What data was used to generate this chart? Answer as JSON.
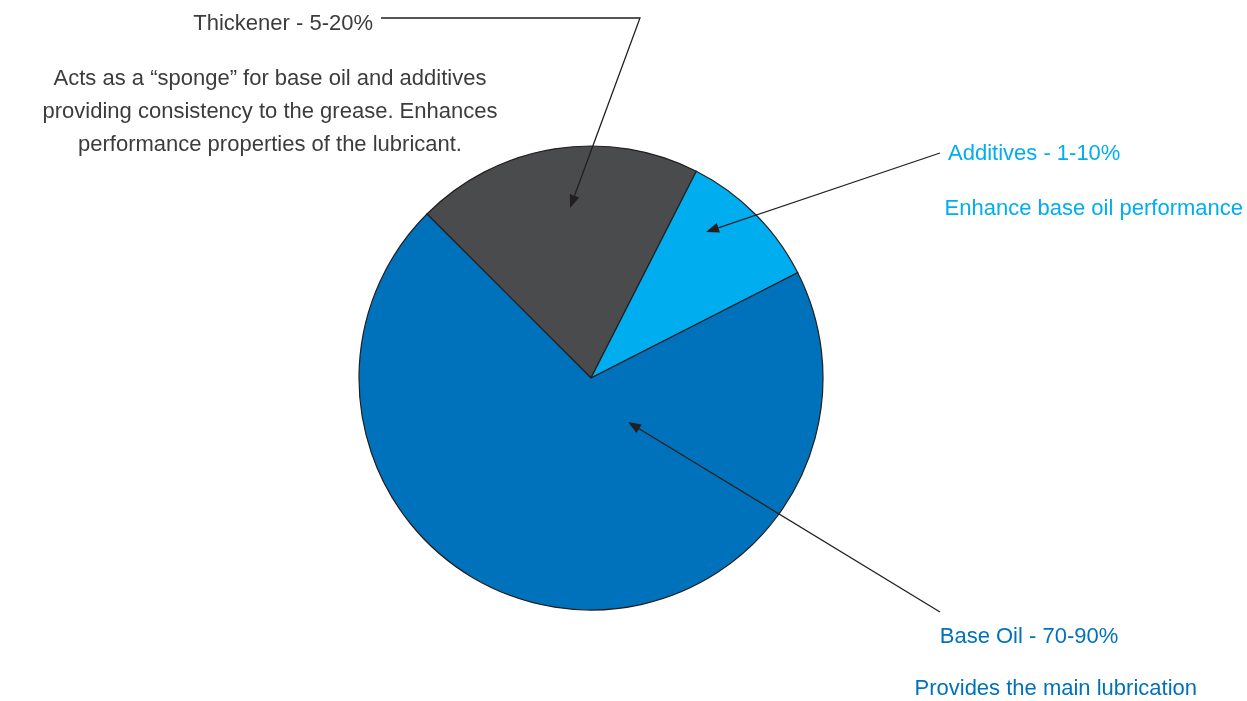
{
  "chart_data": {
    "type": "pie",
    "categories": [
      "Thickener - 5-20%",
      "Additives - 1-10%",
      "Base Oil - 70-90%"
    ],
    "values": [
      20,
      10,
      70
    ],
    "colors": [
      "#4a4b4d",
      "#00adef",
      "#0072bc"
    ],
    "annotations": [
      "Acts as a “sponge” for base oil and additives providing consistency to the grease. Enhances performance properties of the lubricant.",
      "Enhance base oil performance",
      "Provides the main lubrication"
    ]
  }
}
